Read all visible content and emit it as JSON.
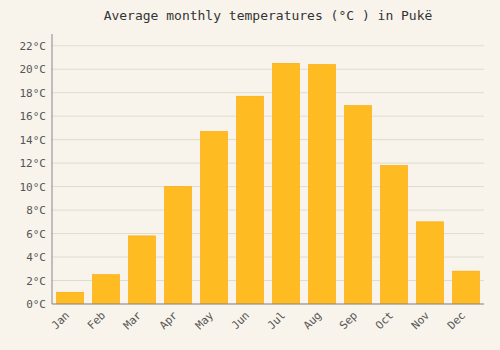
{
  "chart_data": {
    "type": "bar",
    "title": "Average monthly temperatures (°C ) in Pukë",
    "categories": [
      "Jan",
      "Feb",
      "Mar",
      "Apr",
      "May",
      "Jun",
      "Jul",
      "Aug",
      "Sep",
      "Oct",
      "Nov",
      "Dec"
    ],
    "values": [
      1.0,
      2.5,
      5.8,
      10.0,
      14.7,
      17.7,
      20.5,
      20.4,
      16.9,
      11.8,
      7.0,
      2.8
    ],
    "color": "#FFBB22",
    "ylim": [
      0,
      23
    ],
    "yticks": [
      {
        "value": 0,
        "label": "0°C"
      },
      {
        "value": 2,
        "label": "2°C"
      },
      {
        "value": 4,
        "label": "4°C"
      },
      {
        "value": 6,
        "label": "6°C"
      },
      {
        "value": 8,
        "label": "8°C"
      },
      {
        "value": 10,
        "label": "10°C"
      },
      {
        "value": 12,
        "label": "12°C"
      },
      {
        "value": 14,
        "label": "14°C"
      },
      {
        "value": 16,
        "label": "16°C"
      },
      {
        "value": 18,
        "label": "18°C"
      },
      {
        "value": 20,
        "label": "20°C"
      },
      {
        "value": 22,
        "label": "22°C"
      }
    ],
    "grid": true
  }
}
